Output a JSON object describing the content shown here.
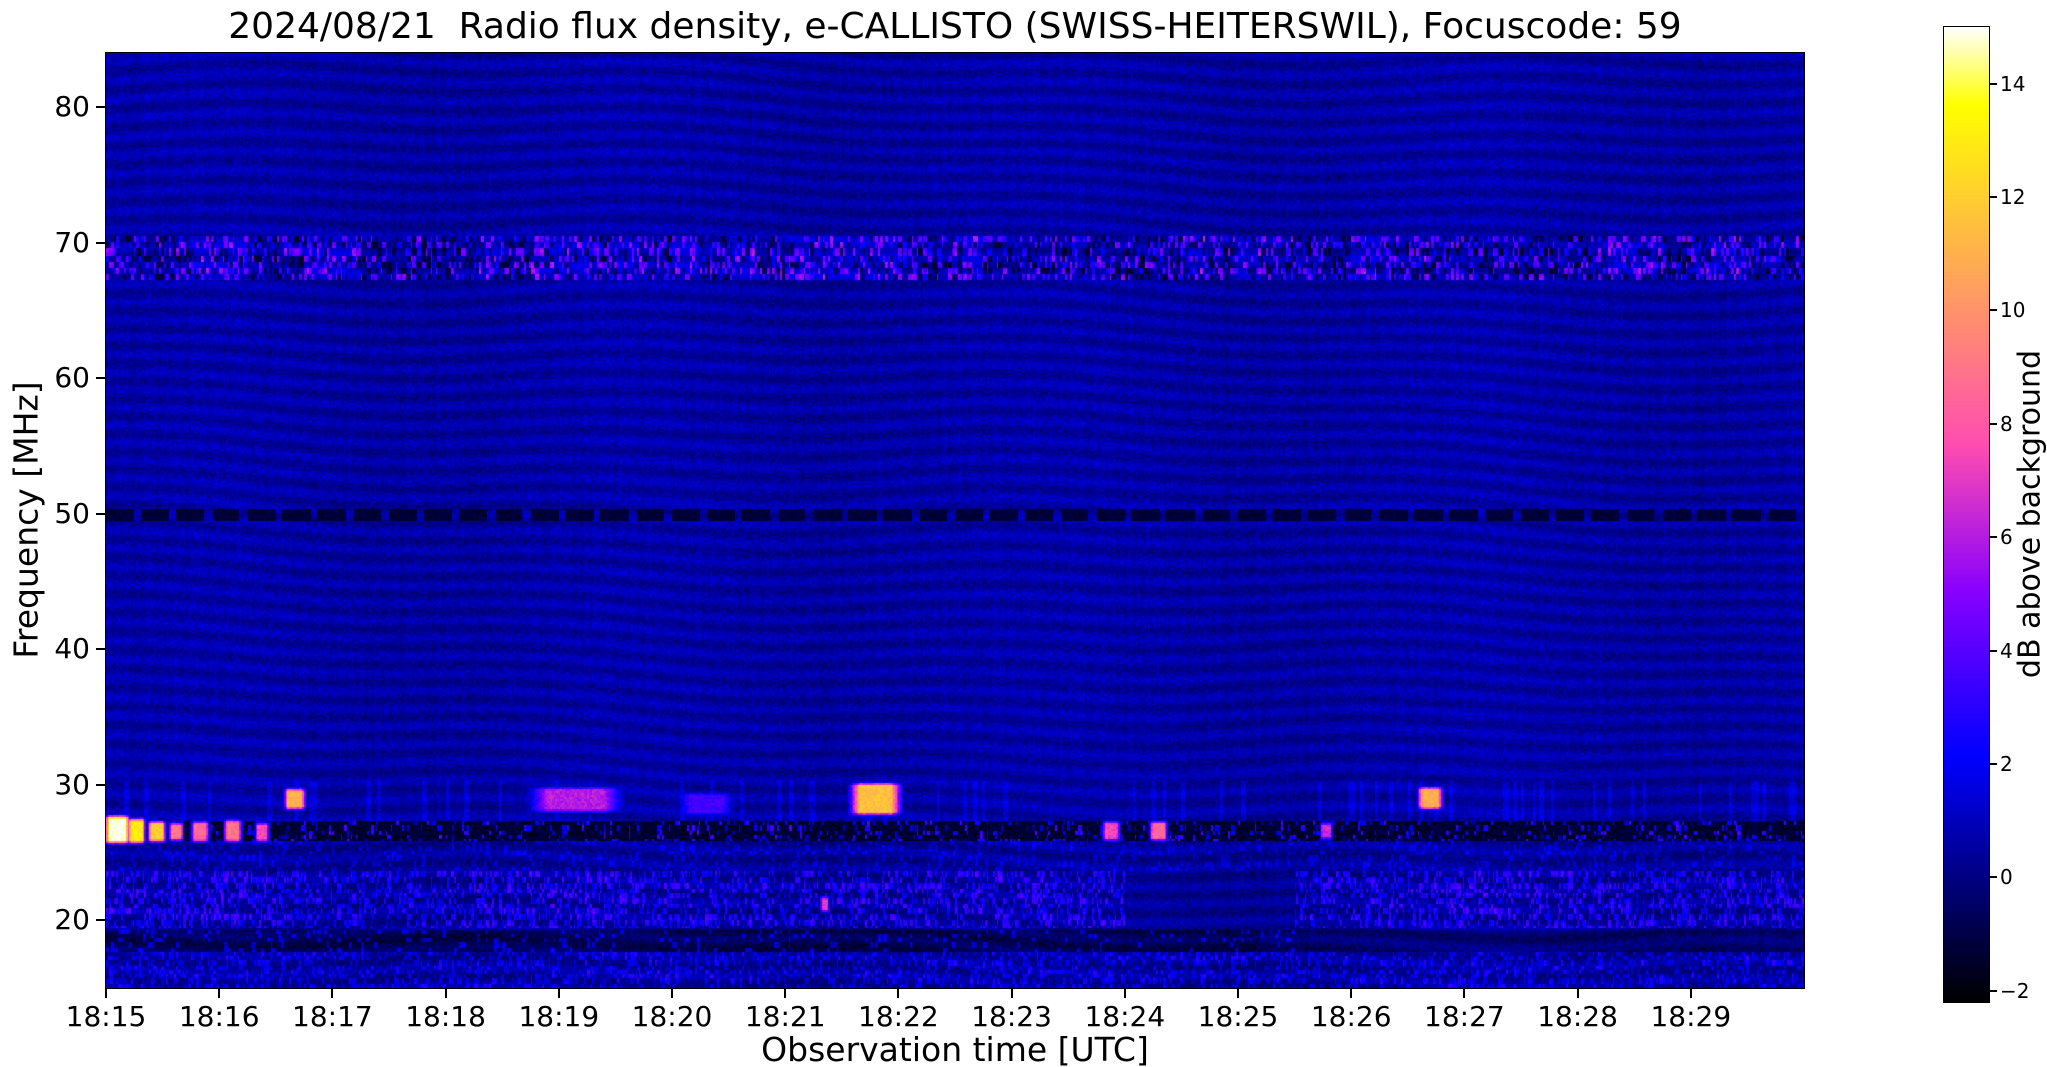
{
  "chart_data": {
    "type": "heatmap",
    "title": "2024/08/21  Radio flux density, e-CALLISTO (SWISS-HEITERSWIL), Focuscode: 59",
    "xlabel": "Observation time [UTC]",
    "ylabel": "Frequency [MHz]",
    "colormap": "gnuplot2",
    "time_span_minutes": 15,
    "freq_range_mhz": [
      15,
      84
    ],
    "x_ticks": [
      {
        "label": "18:15",
        "minute": 0
      },
      {
        "label": "18:16",
        "minute": 1
      },
      {
        "label": "18:17",
        "minute": 2
      },
      {
        "label": "18:18",
        "minute": 3
      },
      {
        "label": "18:19",
        "minute": 4
      },
      {
        "label": "18:20",
        "minute": 5
      },
      {
        "label": "18:21",
        "minute": 6
      },
      {
        "label": "18:22",
        "minute": 7
      },
      {
        "label": "18:23",
        "minute": 8
      },
      {
        "label": "18:24",
        "minute": 9
      },
      {
        "label": "18:25",
        "minute": 10
      },
      {
        "label": "18:26",
        "minute": 11
      },
      {
        "label": "18:27",
        "minute": 12
      },
      {
        "label": "18:28",
        "minute": 13
      },
      {
        "label": "18:29",
        "minute": 14
      }
    ],
    "y_ticks": [
      {
        "label": "80",
        "mhz": 80
      },
      {
        "label": "70",
        "mhz": 70
      },
      {
        "label": "60",
        "mhz": 60
      },
      {
        "label": "50",
        "mhz": 50
      },
      {
        "label": "40",
        "mhz": 40
      },
      {
        "label": "30",
        "mhz": 30
      },
      {
        "label": "20",
        "mhz": 20
      }
    ],
    "colorbar": {
      "label": "dB above background",
      "vmin": -2.2,
      "vmax": 15.0,
      "ticks": [
        {
          "label": "14",
          "value": 14
        },
        {
          "label": "12",
          "value": 12
        },
        {
          "label": "10",
          "value": 10
        },
        {
          "label": "8",
          "value": 8
        },
        {
          "label": "6",
          "value": 6
        },
        {
          "label": "4",
          "value": 4
        },
        {
          "label": "2",
          "value": 2
        },
        {
          "label": "0",
          "value": 0
        },
        {
          "label": "−2",
          "value": -2
        }
      ]
    },
    "background": {
      "base_db": 0.55,
      "noise_db": 1.0,
      "ripple_db": 0.42
    },
    "bands": [
      {
        "name": "rfi-line-69mhz",
        "freq": [
          67.2,
          70.5
        ],
        "kind": "intermittent-blue-rfi",
        "db_bright": 3.5,
        "db_dark": -1.6
      },
      {
        "name": "dark-line-50mhz",
        "freq": [
          49.55,
          50.35
        ],
        "kind": "dark-dashes",
        "db": -1.6
      },
      {
        "name": "dark-band-26mhz",
        "freq": [
          25.85,
          27.4
        ],
        "kind": "dark-band-with-speckle",
        "db": -1.9
      },
      {
        "name": "noise-band-20-24mhz",
        "freq": [
          19.4,
          23.6
        ],
        "kind": "blue-speckle",
        "db": 2.2
      },
      {
        "name": "dark-band-18mhz",
        "freq": [
          17.7,
          19.3
        ],
        "kind": "dark-band",
        "db": -1.1
      },
      {
        "name": "bottom-noise-band",
        "freq": [
          15.0,
          17.7
        ],
        "kind": "blue-speckle",
        "db": 1.6
      }
    ],
    "bursts": [
      {
        "time_min": 0.1,
        "dur_min": 0.14,
        "freq": [
          25.9,
          27.5
        ],
        "db": 15
      },
      {
        "time_min": 0.27,
        "dur_min": 0.1,
        "freq": [
          25.9,
          27.3
        ],
        "db": 13
      },
      {
        "time_min": 0.45,
        "dur_min": 0.1,
        "freq": [
          26.0,
          27.1
        ],
        "db": 12
      },
      {
        "time_min": 0.62,
        "dur_min": 0.08,
        "freq": [
          26.1,
          27.0
        ],
        "db": 9
      },
      {
        "time_min": 0.83,
        "dur_min": 0.1,
        "freq": [
          26.0,
          27.1
        ],
        "db": 8.5
      },
      {
        "time_min": 1.12,
        "dur_min": 0.1,
        "freq": [
          26.0,
          27.2
        ],
        "db": 9
      },
      {
        "time_min": 1.38,
        "dur_min": 0.08,
        "freq": [
          26.0,
          27.0
        ],
        "db": 7.5
      },
      {
        "time_min": 1.67,
        "dur_min": 0.12,
        "freq": [
          28.4,
          29.5
        ],
        "db": 11
      },
      {
        "time_min": 4.15,
        "dur_min": 0.5,
        "freq": [
          28.2,
          29.6
        ],
        "db": 6
      },
      {
        "time_min": 5.3,
        "dur_min": 0.3,
        "freq": [
          28.0,
          29.2
        ],
        "db": 3.5
      },
      {
        "time_min": 6.35,
        "dur_min": 0.05,
        "freq": [
          20.8,
          21.5
        ],
        "db": 7
      },
      {
        "time_min": 6.8,
        "dur_min": 0.28,
        "freq": [
          28.0,
          29.9
        ],
        "db": 11.5
      },
      {
        "time_min": 8.88,
        "dur_min": 0.1,
        "freq": [
          26.1,
          27.1
        ],
        "db": 7.5
      },
      {
        "time_min": 9.3,
        "dur_min": 0.1,
        "freq": [
          26.1,
          27.1
        ],
        "db": 8.5
      },
      {
        "time_min": 10.78,
        "dur_min": 0.07,
        "freq": [
          26.2,
          27.0
        ],
        "db": 6.5
      },
      {
        "time_min": 11.7,
        "dur_min": 0.14,
        "freq": [
          28.4,
          29.6
        ],
        "db": 11
      }
    ]
  }
}
